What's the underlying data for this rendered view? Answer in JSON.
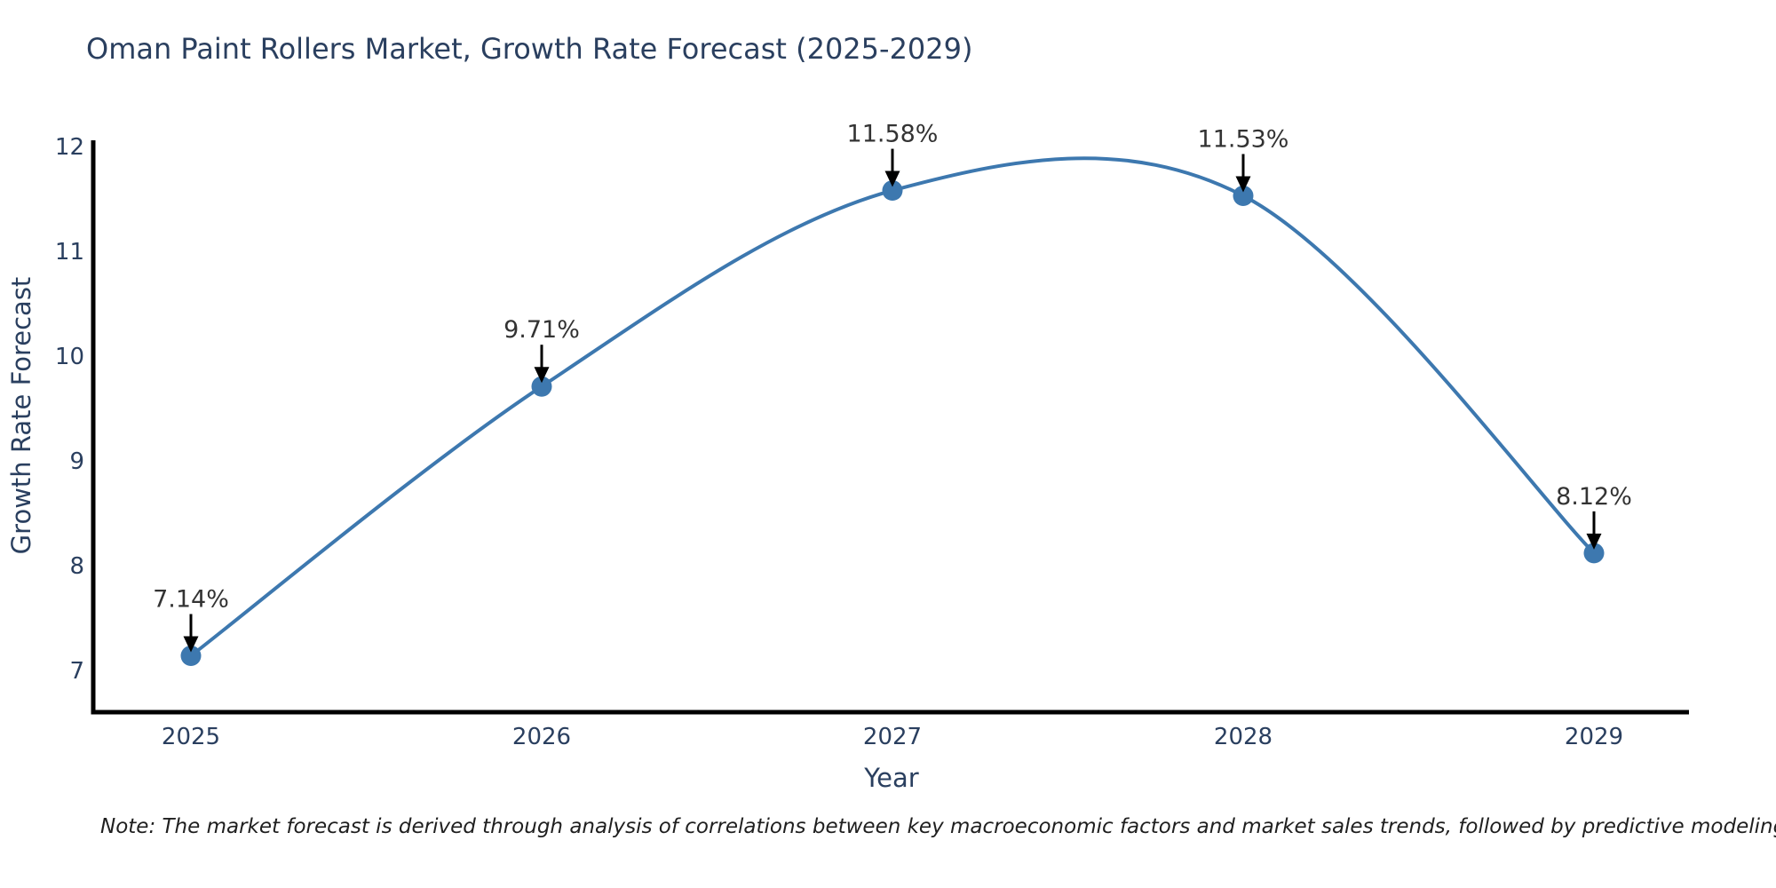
{
  "title": "Oman Paint Rollers Market, Growth Rate Forecast (2025-2029)",
  "note": "Note: The market forecast is derived through analysis of correlations between key macroeconomic factors and market sales trends, followed by predictive modeling to project future sales",
  "chart_data": {
    "type": "line",
    "title": "Oman Paint Rollers Market, Growth Rate Forecast (2025-2029)",
    "x": [
      "2025",
      "2026",
      "2027",
      "2028",
      "2029"
    ],
    "values": [
      7.14,
      9.71,
      11.58,
      11.53,
      8.12
    ],
    "labels": [
      "7.14%",
      "9.71%",
      "11.58%",
      "11.53%",
      "8.12%"
    ],
    "xlabel": "Year",
    "ylabel": "Growth Rate Forecast",
    "yticks": [
      7,
      8,
      9,
      10,
      11,
      12
    ],
    "ylim": [
      6.62,
      12.05
    ],
    "line_shape": "spline",
    "grid": false,
    "legend": "none",
    "annotations_style": "value label above point with black arrow pointing down to marker",
    "colors": {
      "line": "#3d78af",
      "marker": "#3d78af",
      "axis": "#000000",
      "text": "#2a3f5f",
      "annotation": "#333333",
      "background": "#ffffff"
    }
  }
}
